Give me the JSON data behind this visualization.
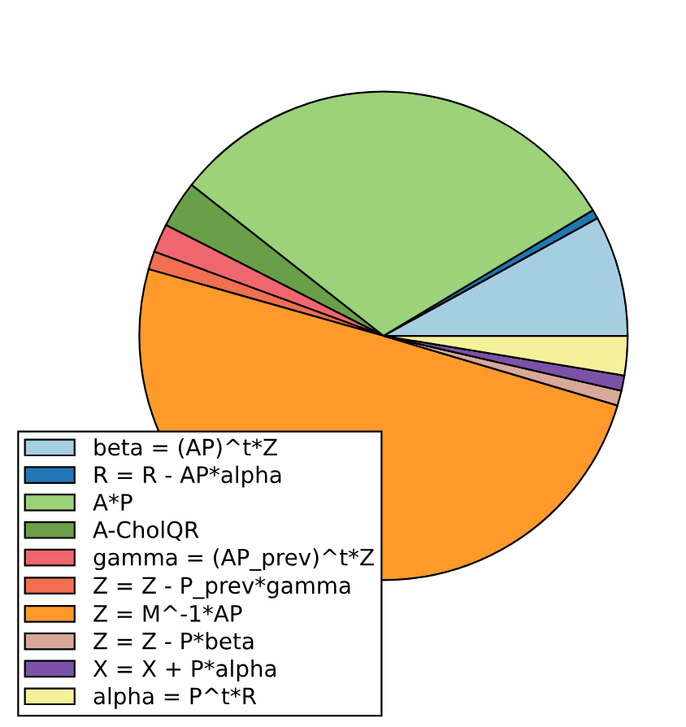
{
  "chart_data": {
    "type": "pie",
    "categories": [
      "beta = (AP)^t*Z",
      "R = R - AP*alpha",
      "A*P",
      "A-CholQR",
      "gamma = (AP_prev)^t*Z",
      "Z = Z - P_prev*gamma",
      "Z = M^-1*AP",
      "Z = Z - P*beta",
      "X = X + P*alpha",
      "alpha = P^t*R"
    ],
    "values": [
      8.0,
      0.6,
      30.8,
      3.1,
      1.9,
      1.2,
      49.8,
      1.0,
      1.0,
      2.6
    ],
    "colors": [
      "#a6cee3",
      "#1f78b4",
      "#9bd27a",
      "#6a9f4a",
      "#f0666e",
      "#f07050",
      "#ff9a2a",
      "#d8a89a",
      "#7b52a8",
      "#f5f09a"
    ],
    "legend": "bottom left"
  }
}
